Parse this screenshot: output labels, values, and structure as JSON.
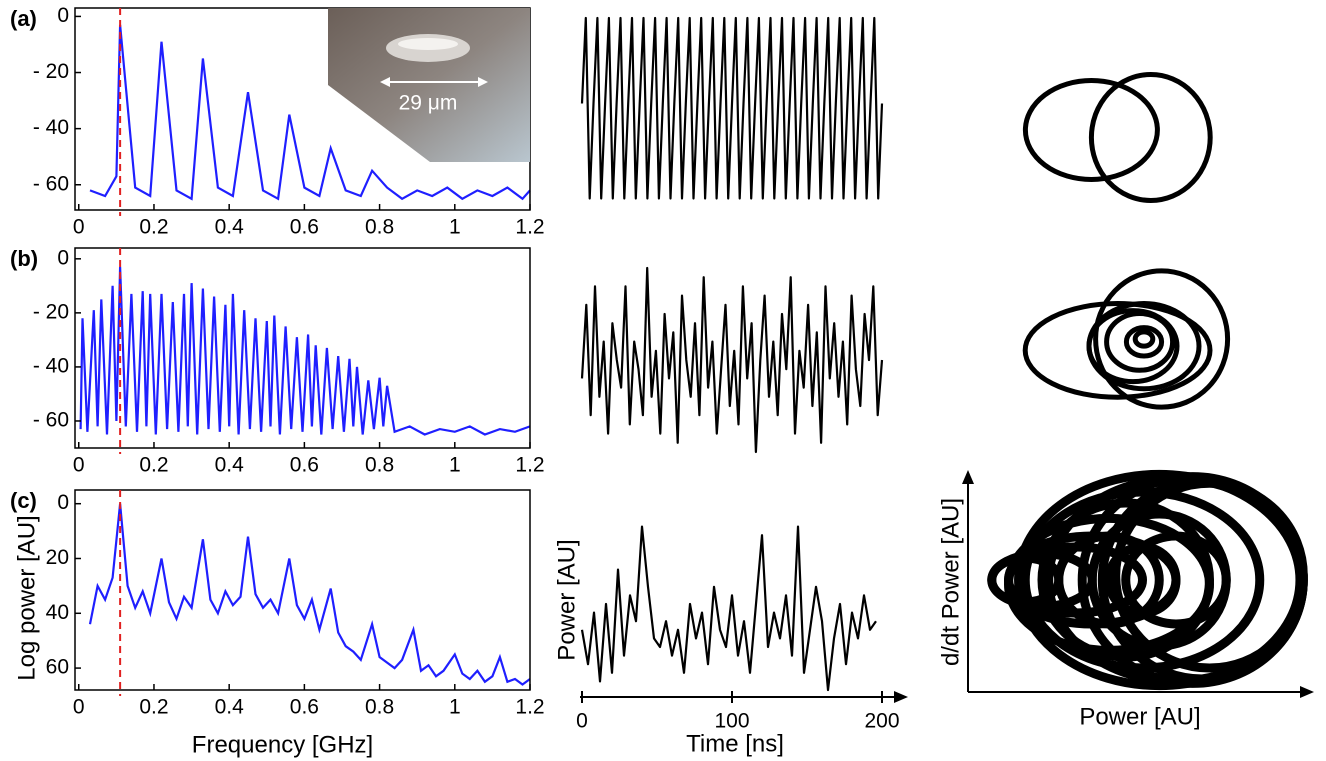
{
  "chart_data": [
    {
      "type": "line",
      "panel_label": "(a)",
      "color": "#1f1fff",
      "vline": 0.11,
      "vline_color": "#e02020",
      "inset_label": "29 μm",
      "x": [
        0.03,
        0.07,
        0.1,
        0.11,
        0.15,
        0.19,
        0.22,
        0.26,
        0.3,
        0.33,
        0.37,
        0.41,
        0.45,
        0.49,
        0.53,
        0.56,
        0.6,
        0.64,
        0.67,
        0.71,
        0.75,
        0.78,
        0.82,
        0.86,
        0.9,
        0.94,
        0.98,
        1.02,
        1.06,
        1.1,
        1.14,
        1.18,
        1.2
      ],
      "values": [
        -62,
        -64,
        -57,
        -3,
        -61,
        -64,
        -9,
        -62,
        -65,
        -15,
        -61,
        -64,
        -27,
        -62,
        -65,
        -35,
        -61,
        -64,
        -47,
        -62,
        -64,
        -55,
        -61,
        -65,
        -62,
        -64,
        -61,
        -65,
        -62,
        -64,
        -61,
        -65,
        -62
      ],
      "xlim": [
        -0.01,
        1.2
      ],
      "ylim": [
        -69,
        3
      ],
      "xticks": [
        0,
        0.2,
        0.4,
        0.6,
        0.8,
        1,
        1.2
      ],
      "yticks": [
        0,
        {
          "value": -20,
          "label": "- 20"
        },
        {
          "value": -40,
          "label": "- 40"
        },
        {
          "value": -60,
          "label": "- 60"
        }
      ]
    },
    {
      "type": "line",
      "panel_label": "(b)",
      "color": "#1f1fff",
      "vline": 0.11,
      "vline_color": "#e02020",
      "x": [
        0.005,
        0.01,
        0.023,
        0.04,
        0.05,
        0.06,
        0.075,
        0.09,
        0.1,
        0.11,
        0.125,
        0.14,
        0.155,
        0.17,
        0.18,
        0.19,
        0.205,
        0.22,
        0.235,
        0.25,
        0.265,
        0.28,
        0.29,
        0.3,
        0.315,
        0.33,
        0.345,
        0.36,
        0.375,
        0.39,
        0.4,
        0.41,
        0.425,
        0.44,
        0.455,
        0.47,
        0.485,
        0.5,
        0.51,
        0.52,
        0.535,
        0.55,
        0.565,
        0.58,
        0.595,
        0.61,
        0.62,
        0.63,
        0.645,
        0.66,
        0.675,
        0.69,
        0.705,
        0.72,
        0.73,
        0.74,
        0.755,
        0.77,
        0.785,
        0.8,
        0.81,
        0.82,
        0.84,
        0.88,
        0.92,
        0.96,
        1.0,
        1.04,
        1.08,
        1.12,
        1.16,
        1.2
      ],
      "values": [
        -63,
        -22,
        -64,
        -19,
        -62,
        -15,
        -65,
        -10,
        -60,
        -3,
        -62,
        -13,
        -64,
        -12,
        -62,
        -13,
        -65,
        -13,
        -63,
        -16,
        -64,
        -13,
        -62,
        -9,
        -65,
        -11,
        -63,
        -14,
        -64,
        -17,
        -62,
        -13,
        -65,
        -19,
        -63,
        -22,
        -64,
        -23,
        -62,
        -21,
        -65,
        -25,
        -63,
        -29,
        -64,
        -28,
        -62,
        -32,
        -65,
        -33,
        -63,
        -36,
        -64,
        -37,
        -62,
        -40,
        -65,
        -45,
        -63,
        -44,
        -62,
        -47,
        -64,
        -62,
        -65,
        -63,
        -64,
        -62,
        -65,
        -63,
        -64,
        -62
      ],
      "xlim": [
        -0.01,
        1.2
      ],
      "ylim": [
        -70,
        4
      ],
      "xticks": [
        0,
        0.2,
        0.4,
        0.6,
        0.8,
        1,
        1.2
      ],
      "yticks": [
        0,
        {
          "value": -20,
          "label": "- 20"
        },
        {
          "value": -40,
          "label": "- 40"
        },
        {
          "value": -60,
          "label": "- 60"
        }
      ]
    },
    {
      "type": "line",
      "panel_label": "(c)",
      "color": "#1f1fff",
      "vline": 0.11,
      "vline_color": "#e02020",
      "xlabel": "Frequency [GHz]",
      "ylabel": "Log power [AU]",
      "x": [
        0.03,
        0.05,
        0.07,
        0.09,
        0.11,
        0.13,
        0.15,
        0.17,
        0.19,
        0.22,
        0.24,
        0.26,
        0.28,
        0.3,
        0.33,
        0.35,
        0.37,
        0.39,
        0.41,
        0.43,
        0.45,
        0.47,
        0.49,
        0.51,
        0.53,
        0.56,
        0.58,
        0.6,
        0.62,
        0.64,
        0.67,
        0.69,
        0.71,
        0.73,
        0.75,
        0.78,
        0.8,
        0.82,
        0.84,
        0.86,
        0.89,
        0.91,
        0.93,
        0.95,
        0.97,
        1.0,
        1.02,
        1.04,
        1.06,
        1.08,
        1.1,
        1.12,
        1.14,
        1.16,
        1.18,
        1.2
      ],
      "values": [
        -44,
        -30,
        -35,
        -27,
        0,
        -30,
        -38,
        -32,
        -40,
        -20,
        -36,
        -42,
        -34,
        -38,
        -13,
        -35,
        -40,
        -32,
        -37,
        -34,
        -12,
        -33,
        -38,
        -35,
        -40,
        -20,
        -37,
        -42,
        -35,
        -46,
        -31,
        -47,
        -52,
        -54,
        -57,
        -44,
        -56,
        -58,
        -60,
        -57,
        -46,
        -61,
        -59,
        -63,
        -61,
        -55,
        -62,
        -64,
        -61,
        -65,
        -63,
        -56,
        -65,
        -64,
        -66,
        -64
      ],
      "xlim": [
        -0.01,
        1.2
      ],
      "ylim": [
        -68,
        5
      ],
      "xticks": [
        0,
        0.2,
        0.4,
        0.6,
        0.8,
        1,
        1.2
      ],
      "yticks": [
        0,
        {
          "value": -20,
          "label": "20"
        },
        {
          "value": -40,
          "label": "40"
        },
        {
          "value": -60,
          "label": "60"
        }
      ]
    },
    {
      "type": "trace",
      "color": "#000000",
      "values": [
        0.55,
        1,
        0.05,
        0.55,
        1,
        0.05,
        0.55,
        1,
        0.05,
        0.55,
        1,
        0.05,
        0.55,
        1,
        0.05,
        0.55,
        1,
        0.05,
        0.55,
        1,
        0.05,
        0.55,
        1,
        0.05,
        0.55,
        1,
        0.05,
        0.55,
        1,
        0.05,
        0.55,
        1,
        0.05,
        0.55,
        1,
        0.05,
        0.55,
        1,
        0.05,
        0.55,
        1,
        0.05,
        0.55,
        1,
        0.05,
        0.55,
        1,
        0.05,
        0.55,
        1,
        0.05,
        0.55,
        1,
        0.05,
        0.55,
        1,
        0.05,
        0.55,
        1,
        0.05,
        0.55,
        1,
        0.05,
        0.55,
        1,
        0.05,
        0.55,
        1,
        0.05,
        0.55,
        1,
        0.05,
        0.55,
        1,
        0.05,
        0.55,
        1,
        0.05,
        0.55
      ]
    },
    {
      "type": "trace",
      "color": "#000000",
      "values": [
        0.4,
        0.8,
        0.2,
        0.9,
        0.3,
        0.6,
        0.1,
        0.7,
        0.5,
        0.35,
        0.9,
        0.15,
        0.6,
        0.45,
        0.2,
        1,
        0.3,
        0.55,
        0.1,
        0.75,
        0.4,
        0.65,
        0.05,
        0.85,
        0.5,
        0.3,
        0.7,
        0.2,
        0.95,
        0.35,
        0.6,
        0.1,
        0.45,
        0.8,
        0.25,
        0.55,
        0.15,
        0.9,
        0.4,
        0.7,
        0,
        0.5,
        0.85,
        0.3,
        0.6,
        0.2,
        0.75,
        0.45,
        0.95,
        0.1,
        0.55,
        0.35,
        0.8,
        0.25,
        0.65,
        0.05,
        0.9,
        0.4,
        0.7,
        0.3,
        0.6,
        0.15,
        0.85,
        0.45,
        0.25,
        0.75,
        0.5,
        0.9,
        0.2,
        0.5
      ]
    },
    {
      "type": "trace",
      "color": "#000000",
      "xlabel": "Time [ns]",
      "ylabel": "Power [AU]",
      "x": [
        0,
        4,
        8,
        12,
        16,
        20,
        24,
        28,
        32,
        36,
        40,
        44,
        48,
        52,
        56,
        60,
        64,
        68,
        72,
        76,
        80,
        84,
        88,
        92,
        96,
        100,
        104,
        108,
        112,
        116,
        120,
        124,
        128,
        132,
        136,
        140,
        144,
        148,
        152,
        156,
        160,
        164,
        168,
        172,
        176,
        180,
        184,
        188,
        192,
        196
      ],
      "values": [
        0.35,
        0.15,
        0.45,
        0.05,
        0.5,
        0.1,
        0.7,
        0.2,
        0.55,
        0.4,
        0.95,
        0.6,
        0.3,
        0.25,
        0.4,
        0.2,
        0.35,
        0.1,
        0.5,
        0.3,
        0.45,
        0.15,
        0.6,
        0.35,
        0.25,
        0.55,
        0.2,
        0.4,
        0.1,
        0.5,
        0.9,
        0.25,
        0.45,
        0.3,
        0.55,
        0.2,
        0.95,
        0.1,
        0.35,
        0.6,
        0.4,
        0,
        0.3,
        0.5,
        0.15,
        0.45,
        0.3,
        0.55,
        0.35,
        0.4
      ],
      "xlim": [
        0,
        200
      ],
      "xticks": [
        0,
        100,
        200
      ]
    },
    {
      "type": "phase",
      "color": "#000000",
      "loops": [
        {
          "cx": 0.37,
          "cy": 0.5,
          "rx": 0.3,
          "ry": 0.33
        },
        {
          "cx": 0.64,
          "cy": 0.45,
          "rx": 0.27,
          "ry": 0.42
        }
      ]
    },
    {
      "type": "phase",
      "color": "#000000",
      "loops": [
        {
          "cx": 0.68,
          "cy": 0.5,
          "rx": 0.3,
          "ry": 0.48
        },
        {
          "cx": 0.48,
          "cy": 0.42,
          "rx": 0.42,
          "ry": 0.33
        },
        {
          "cx": 0.6,
          "cy": 0.45,
          "rx": 0.25,
          "ry": 0.3
        },
        {
          "cx": 0.55,
          "cy": 0.45,
          "rx": 0.2,
          "ry": 0.25
        },
        {
          "cx": 0.58,
          "cy": 0.48,
          "rx": 0.15,
          "ry": 0.2
        },
        {
          "cx": 0.6,
          "cy": 0.48,
          "rx": 0.08,
          "ry": 0.1
        },
        {
          "cx": 0.6,
          "cy": 0.5,
          "rx": 0.04,
          "ry": 0.05
        }
      ]
    },
    {
      "type": "phase",
      "color": "#000000",
      "xlabel": "Power [AU]",
      "ylabel": "d/dt Power [AU]",
      "loops": [
        {
          "cx": 0.55,
          "cy": 0.5,
          "rx": 0.42,
          "ry": 0.48
        },
        {
          "cx": 0.6,
          "cy": 0.5,
          "rx": 0.38,
          "ry": 0.46
        },
        {
          "cx": 0.65,
          "cy": 0.5,
          "rx": 0.33,
          "ry": 0.47
        },
        {
          "cx": 0.68,
          "cy": 0.5,
          "rx": 0.3,
          "ry": 0.45
        },
        {
          "cx": 0.7,
          "cy": 0.52,
          "rx": 0.28,
          "ry": 0.42
        },
        {
          "cx": 0.5,
          "cy": 0.5,
          "rx": 0.35,
          "ry": 0.4
        },
        {
          "cx": 0.4,
          "cy": 0.48,
          "rx": 0.3,
          "ry": 0.3
        },
        {
          "cx": 0.35,
          "cy": 0.5,
          "rx": 0.25,
          "ry": 0.2
        },
        {
          "cx": 0.3,
          "cy": 0.5,
          "rx": 0.2,
          "ry": 0.15
        },
        {
          "cx": 0.2,
          "cy": 0.5,
          "rx": 0.15,
          "ry": 0.12
        },
        {
          "cx": 0.45,
          "cy": 0.5,
          "rx": 0.25,
          "ry": 0.35
        },
        {
          "cx": 0.55,
          "cy": 0.5,
          "rx": 0.2,
          "ry": 0.3
        },
        {
          "cx": 0.6,
          "cy": 0.5,
          "rx": 0.15,
          "ry": 0.2
        },
        {
          "cx": 0.4,
          "cy": 0.5,
          "rx": 0.15,
          "ry": 0.2
        },
        {
          "cx": 0.15,
          "cy": 0.5,
          "rx": 0.1,
          "ry": 0.1
        },
        {
          "cx": 0.5,
          "cy": 0.5,
          "rx": 0.1,
          "ry": 0.15
        }
      ]
    }
  ]
}
